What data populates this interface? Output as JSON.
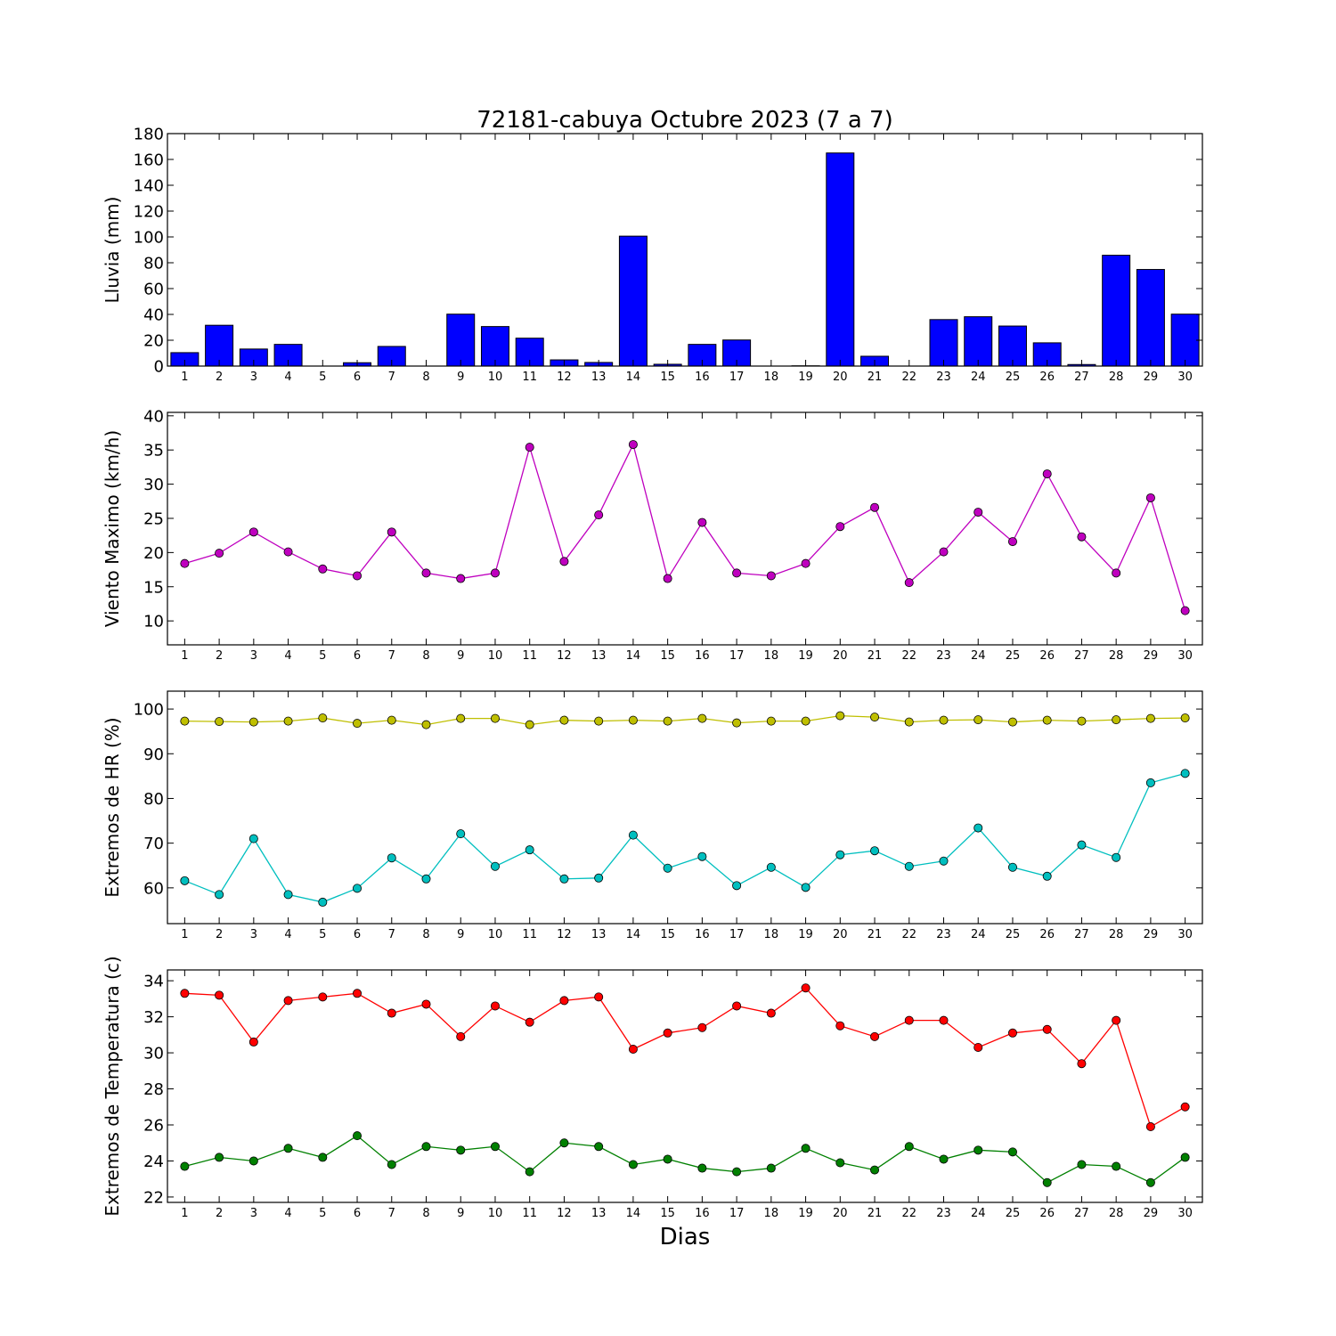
{
  "title": "72181-cabuya Octubre 2023  (7 a 7)",
  "xlabel": "Dias",
  "chart_data": [
    {
      "type": "bar",
      "ylabel": "Lluvia (mm)",
      "ylim": [
        0,
        180
      ],
      "yticks": [
        0,
        20,
        40,
        60,
        80,
        100,
        120,
        140,
        160,
        180
      ],
      "color": "#0000ff",
      "categories": [
        1,
        2,
        3,
        4,
        5,
        6,
        7,
        8,
        9,
        10,
        11,
        12,
        13,
        14,
        15,
        16,
        17,
        18,
        19,
        20,
        21,
        22,
        23,
        24,
        25,
        26,
        27,
        28,
        29,
        30
      ],
      "values": [
        10.4,
        31.6,
        13.2,
        16.8,
        0,
        2.6,
        15.2,
        0,
        40.2,
        30.6,
        21.6,
        4.8,
        2.8,
        100.6,
        1.4,
        16.8,
        20.2,
        0,
        0.2,
        165.0,
        7.6,
        0,
        36.0,
        38.2,
        31.0,
        18.0,
        1.2,
        85.8,
        74.8,
        40.2
      ]
    },
    {
      "type": "line",
      "ylabel": "Viento Maximo (km/h)",
      "ylim": [
        6.5,
        40.5
      ],
      "yticks": [
        10,
        15,
        20,
        25,
        30,
        35,
        40
      ],
      "x": [
        1,
        2,
        3,
        4,
        5,
        6,
        7,
        8,
        9,
        10,
        11,
        12,
        13,
        14,
        15,
        16,
        17,
        18,
        19,
        20,
        21,
        22,
        23,
        24,
        25,
        26,
        27,
        28,
        29,
        30
      ],
      "series": [
        {
          "color": "#bf00bf",
          "values": [
            18.4,
            19.9,
            23.0,
            20.1,
            17.6,
            16.6,
            23.0,
            17.0,
            16.2,
            17.0,
            35.4,
            18.7,
            25.5,
            35.8,
            16.2,
            24.4,
            17.0,
            16.6,
            18.4,
            23.8,
            26.6,
            15.6,
            20.1,
            25.9,
            21.6,
            31.5,
            22.3,
            17.0,
            28.0,
            11.5
          ]
        }
      ]
    },
    {
      "type": "line",
      "ylabel": "Extremos de HR (%)",
      "ylim": [
        52,
        104
      ],
      "yticks": [
        60,
        70,
        80,
        90,
        100
      ],
      "x": [
        1,
        2,
        3,
        4,
        5,
        6,
        7,
        8,
        9,
        10,
        11,
        12,
        13,
        14,
        15,
        16,
        17,
        18,
        19,
        20,
        21,
        22,
        23,
        24,
        25,
        26,
        27,
        28,
        29,
        30
      ],
      "series": [
        {
          "color": "#bfbf00",
          "values": [
            97.3,
            97.2,
            97.1,
            97.3,
            98.0,
            96.8,
            97.5,
            96.5,
            97.9,
            97.9,
            96.5,
            97.5,
            97.3,
            97.5,
            97.3,
            97.9,
            96.9,
            97.3,
            97.3,
            98.5,
            98.2,
            97.1,
            97.5,
            97.6,
            97.1,
            97.5,
            97.3,
            97.6,
            97.9,
            98.0
          ]
        },
        {
          "color": "#00bfbf",
          "values": [
            61.6,
            58.5,
            71.0,
            58.5,
            56.8,
            59.9,
            66.7,
            62.0,
            72.1,
            64.8,
            68.5,
            62.0,
            62.2,
            71.8,
            64.4,
            67.0,
            60.5,
            64.6,
            60.1,
            67.4,
            68.3,
            64.8,
            66.0,
            73.4,
            64.6,
            62.6,
            69.6,
            66.8,
            83.5,
            85.6
          ]
        }
      ]
    },
    {
      "type": "line",
      "ylabel": "Extremos de Temperatura (c)",
      "ylim": [
        21.7,
        34.6
      ],
      "yticks": [
        22,
        24,
        26,
        28,
        30,
        32,
        34
      ],
      "x": [
        1,
        2,
        3,
        4,
        5,
        6,
        7,
        8,
        9,
        10,
        11,
        12,
        13,
        14,
        15,
        16,
        17,
        18,
        19,
        20,
        21,
        22,
        23,
        24,
        25,
        26,
        27,
        28,
        29,
        30
      ],
      "series": [
        {
          "color": "#ff0000",
          "values": [
            33.3,
            33.2,
            30.6,
            32.9,
            33.1,
            33.3,
            32.2,
            32.7,
            30.9,
            32.6,
            31.7,
            32.9,
            33.1,
            30.2,
            31.1,
            31.4,
            32.6,
            32.2,
            33.6,
            31.5,
            30.9,
            31.8,
            31.8,
            30.3,
            31.1,
            31.3,
            29.4,
            31.8,
            25.9,
            27.0
          ]
        },
        {
          "color": "#008000",
          "values": [
            23.7,
            24.2,
            24.0,
            24.7,
            24.2,
            25.4,
            23.8,
            24.8,
            24.6,
            24.8,
            23.4,
            25.0,
            24.8,
            23.8,
            24.1,
            23.6,
            23.4,
            23.6,
            24.7,
            23.9,
            23.5,
            24.8,
            24.1,
            24.6,
            24.5,
            22.8,
            23.8,
            23.7,
            22.8,
            24.2
          ]
        }
      ]
    }
  ]
}
